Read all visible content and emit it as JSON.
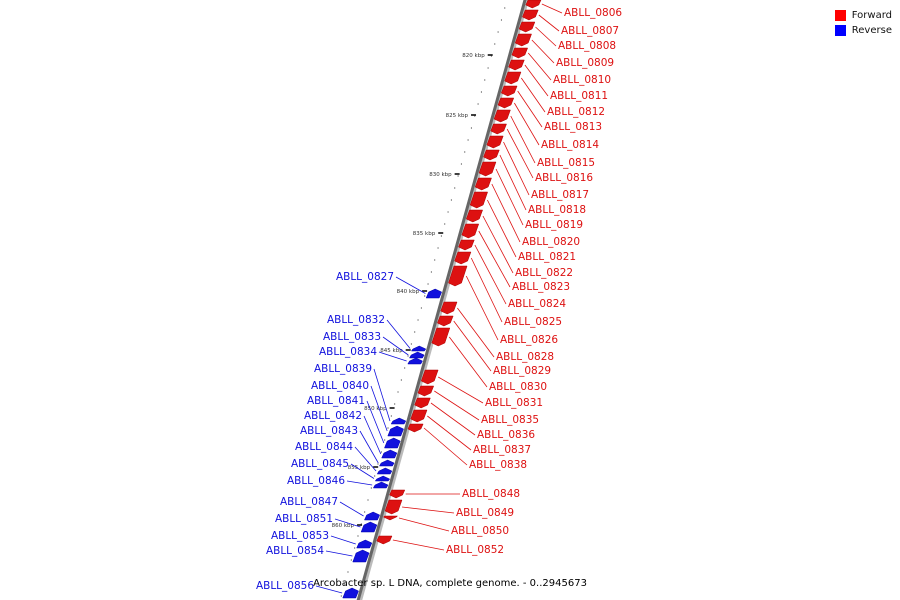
{
  "legend": {
    "forward_label": "Forward",
    "reverse_label": "Reverse",
    "forward_color": "#ff0000",
    "reverse_color": "#0000ff"
  },
  "caption": "Arcobacter sp. L DNA, complete genome. - 0..2945673",
  "ruler": {
    "ticks": [
      "820 kbp",
      "825 kbp",
      "830 kbp",
      "835 kbp",
      "840 kbp",
      "845 kbp",
      "850 kbp",
      "855 kbp",
      "860 kbp"
    ]
  },
  "genes": [
    {
      "label": "ABLL_0806",
      "strand": "forward",
      "color": "#dd1111"
    },
    {
      "label": "ABLL_0807",
      "strand": "forward",
      "color": "#dd1111"
    },
    {
      "label": "ABLL_0808",
      "strand": "forward",
      "color": "#dd1111"
    },
    {
      "label": "ABLL_0809",
      "strand": "forward",
      "color": "#dd1111"
    },
    {
      "label": "ABLL_0810",
      "strand": "forward",
      "color": "#dd1111"
    },
    {
      "label": "ABLL_0811",
      "strand": "forward",
      "color": "#dd1111"
    },
    {
      "label": "ABLL_0812",
      "strand": "forward",
      "color": "#dd1111"
    },
    {
      "label": "ABLL_0813",
      "strand": "forward",
      "color": "#dd1111"
    },
    {
      "label": "ABLL_0814",
      "strand": "forward",
      "color": "#dd1111"
    },
    {
      "label": "ABLL_0815",
      "strand": "forward",
      "color": "#dd1111"
    },
    {
      "label": "ABLL_0816",
      "strand": "forward",
      "color": "#dd1111"
    },
    {
      "label": "ABLL_0817",
      "strand": "forward",
      "color": "#dd1111"
    },
    {
      "label": "ABLL_0818",
      "strand": "forward",
      "color": "#dd1111"
    },
    {
      "label": "ABLL_0819",
      "strand": "forward",
      "color": "#dd1111"
    },
    {
      "label": "ABLL_0820",
      "strand": "forward",
      "color": "#dd1111"
    },
    {
      "label": "ABLL_0821",
      "strand": "forward",
      "color": "#dd1111"
    },
    {
      "label": "ABLL_0822",
      "strand": "forward",
      "color": "#dd1111"
    },
    {
      "label": "ABLL_0823",
      "strand": "forward",
      "color": "#dd1111"
    },
    {
      "label": "ABLL_0824",
      "strand": "forward",
      "color": "#dd1111"
    },
    {
      "label": "ABLL_0825",
      "strand": "forward",
      "color": "#dd1111"
    },
    {
      "label": "ABLL_0826",
      "strand": "forward",
      "color": "#dd1111"
    },
    {
      "label": "ABLL_0828",
      "strand": "forward",
      "color": "#dd1111"
    },
    {
      "label": "ABLL_0829",
      "strand": "forward",
      "color": "#dd1111"
    },
    {
      "label": "ABLL_0830",
      "strand": "forward",
      "color": "#dd1111"
    },
    {
      "label": "ABLL_0831",
      "strand": "forward",
      "color": "#dd1111"
    },
    {
      "label": "ABLL_0835",
      "strand": "forward",
      "color": "#dd1111"
    },
    {
      "label": "ABLL_0836",
      "strand": "forward",
      "color": "#dd1111"
    },
    {
      "label": "ABLL_0837",
      "strand": "forward",
      "color": "#dd1111"
    },
    {
      "label": "ABLL_0838",
      "strand": "forward",
      "color": "#dd1111"
    },
    {
      "label": "ABLL_0848",
      "strand": "forward",
      "color": "#dd1111"
    },
    {
      "label": "ABLL_0849",
      "strand": "forward",
      "color": "#dd1111"
    },
    {
      "label": "ABLL_0850",
      "strand": "forward",
      "color": "#dd1111"
    },
    {
      "label": "ABLL_0852",
      "strand": "forward",
      "color": "#dd1111"
    },
    {
      "label": "ABLL_0827",
      "strand": "reverse",
      "color": "#1111dd"
    },
    {
      "label": "ABLL_0832",
      "strand": "reverse",
      "color": "#1111dd"
    },
    {
      "label": "ABLL_0833",
      "strand": "reverse",
      "color": "#1111dd"
    },
    {
      "label": "ABLL_0834",
      "strand": "reverse",
      "color": "#1111dd"
    },
    {
      "label": "ABLL_0839",
      "strand": "reverse",
      "color": "#1111dd"
    },
    {
      "label": "ABLL_0840",
      "strand": "reverse",
      "color": "#1111dd"
    },
    {
      "label": "ABLL_0841",
      "strand": "reverse",
      "color": "#1111dd"
    },
    {
      "label": "ABLL_0842",
      "strand": "reverse",
      "color": "#1111dd"
    },
    {
      "label": "ABLL_0843",
      "strand": "reverse",
      "color": "#1111dd"
    },
    {
      "label": "ABLL_0844",
      "strand": "reverse",
      "color": "#1111dd"
    },
    {
      "label": "ABLL_0845",
      "strand": "reverse",
      "color": "#1111dd"
    },
    {
      "label": "ABLL_0846",
      "strand": "reverse",
      "color": "#1111dd"
    },
    {
      "label": "ABLL_0847",
      "strand": "reverse",
      "color": "#1111dd"
    },
    {
      "label": "ABLL_0851",
      "strand": "reverse",
      "color": "#1111dd"
    },
    {
      "label": "ABLL_0853",
      "strand": "reverse",
      "color": "#1111dd"
    },
    {
      "label": "ABLL_0854",
      "strand": "reverse",
      "color": "#1111dd"
    },
    {
      "label": "ABLL_0856",
      "strand": "reverse",
      "color": "#1111dd"
    }
  ]
}
